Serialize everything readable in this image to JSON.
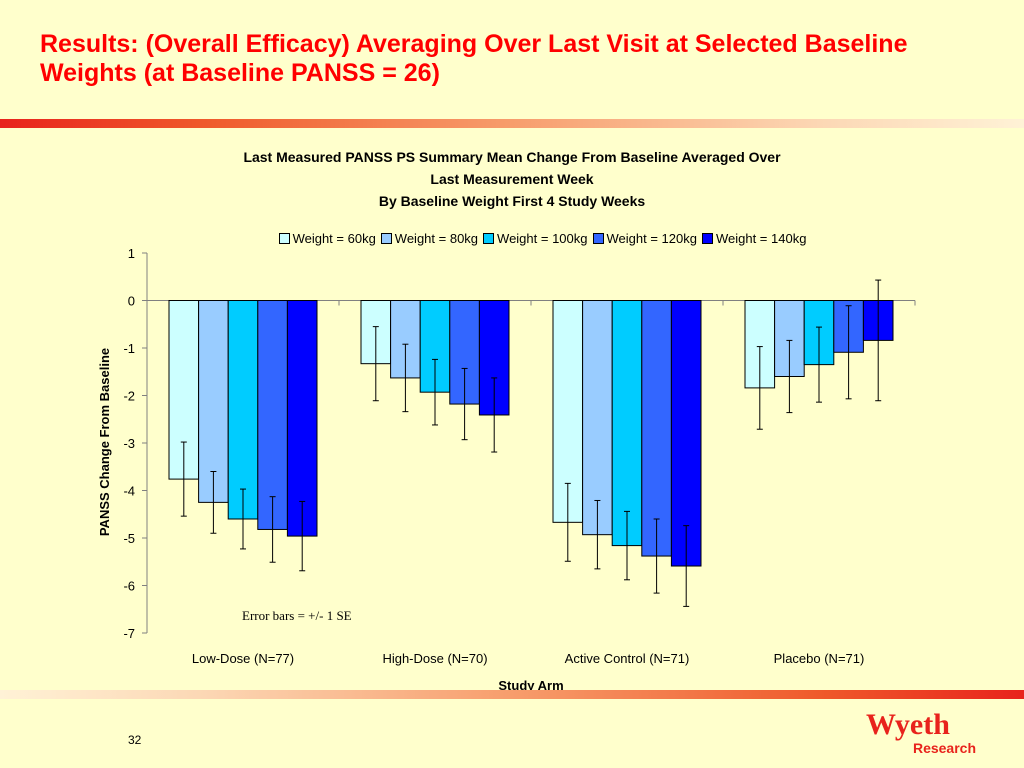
{
  "slide": {
    "title": "Results: (Overall Efficacy) Averaging Over Last Visit at Selected Baseline Weights (at Baseline PANSS = 26)",
    "page_number": "32",
    "logo": {
      "name": "Wyeth",
      "sub": "Research"
    }
  },
  "chart_data": {
    "type": "bar",
    "title": [
      "Last Measured PANSS PS Summary Mean Change From Baseline Averaged Over",
      "Last Measurement Week",
      "By Baseline Weight First 4 Study Weeks"
    ],
    "xlabel": "Study Arm",
    "ylabel": "PANSS Change From Baseline",
    "ylim": [
      -7,
      1
    ],
    "yticks": [
      "1",
      "0",
      "-1",
      "-2",
      "-3",
      "-4",
      "-5",
      "-6",
      "-7"
    ],
    "categories": [
      "Low-Dose (N=77)",
      "High-Dose (N=70)",
      "Active Control (N=71)",
      "Placebo (N=71)"
    ],
    "series": [
      {
        "name": "Weight = 60kg",
        "color": "#ccffff",
        "values": [
          -3.76,
          -1.33,
          -4.67,
          -1.84
        ],
        "se": [
          0.78,
          0.78,
          0.82,
          0.87
        ]
      },
      {
        "name": "Weight = 80kg",
        "color": "#99ccff",
        "values": [
          -4.25,
          -1.63,
          -4.93,
          -1.6
        ],
        "se": [
          0.65,
          0.71,
          0.72,
          0.76
        ]
      },
      {
        "name": "Weight = 100kg",
        "color": "#00ccff",
        "values": [
          -4.6,
          -1.93,
          -5.16,
          -1.35
        ],
        "se": [
          0.63,
          0.69,
          0.72,
          0.79
        ]
      },
      {
        "name": "Weight = 120kg",
        "color": "#3366ff",
        "values": [
          -4.82,
          -2.18,
          -5.38,
          -1.09
        ],
        "se": [
          0.69,
          0.75,
          0.78,
          0.98
        ]
      },
      {
        "name": "Weight = 140kg",
        "color": "#0000ff",
        "values": [
          -4.96,
          -2.41,
          -5.59,
          -0.84
        ],
        "se": [
          0.73,
          0.78,
          0.85,
          1.27
        ]
      }
    ],
    "annotation": "Error bars = +/- 1 SE",
    "legend_position": "top",
    "grid": false
  }
}
